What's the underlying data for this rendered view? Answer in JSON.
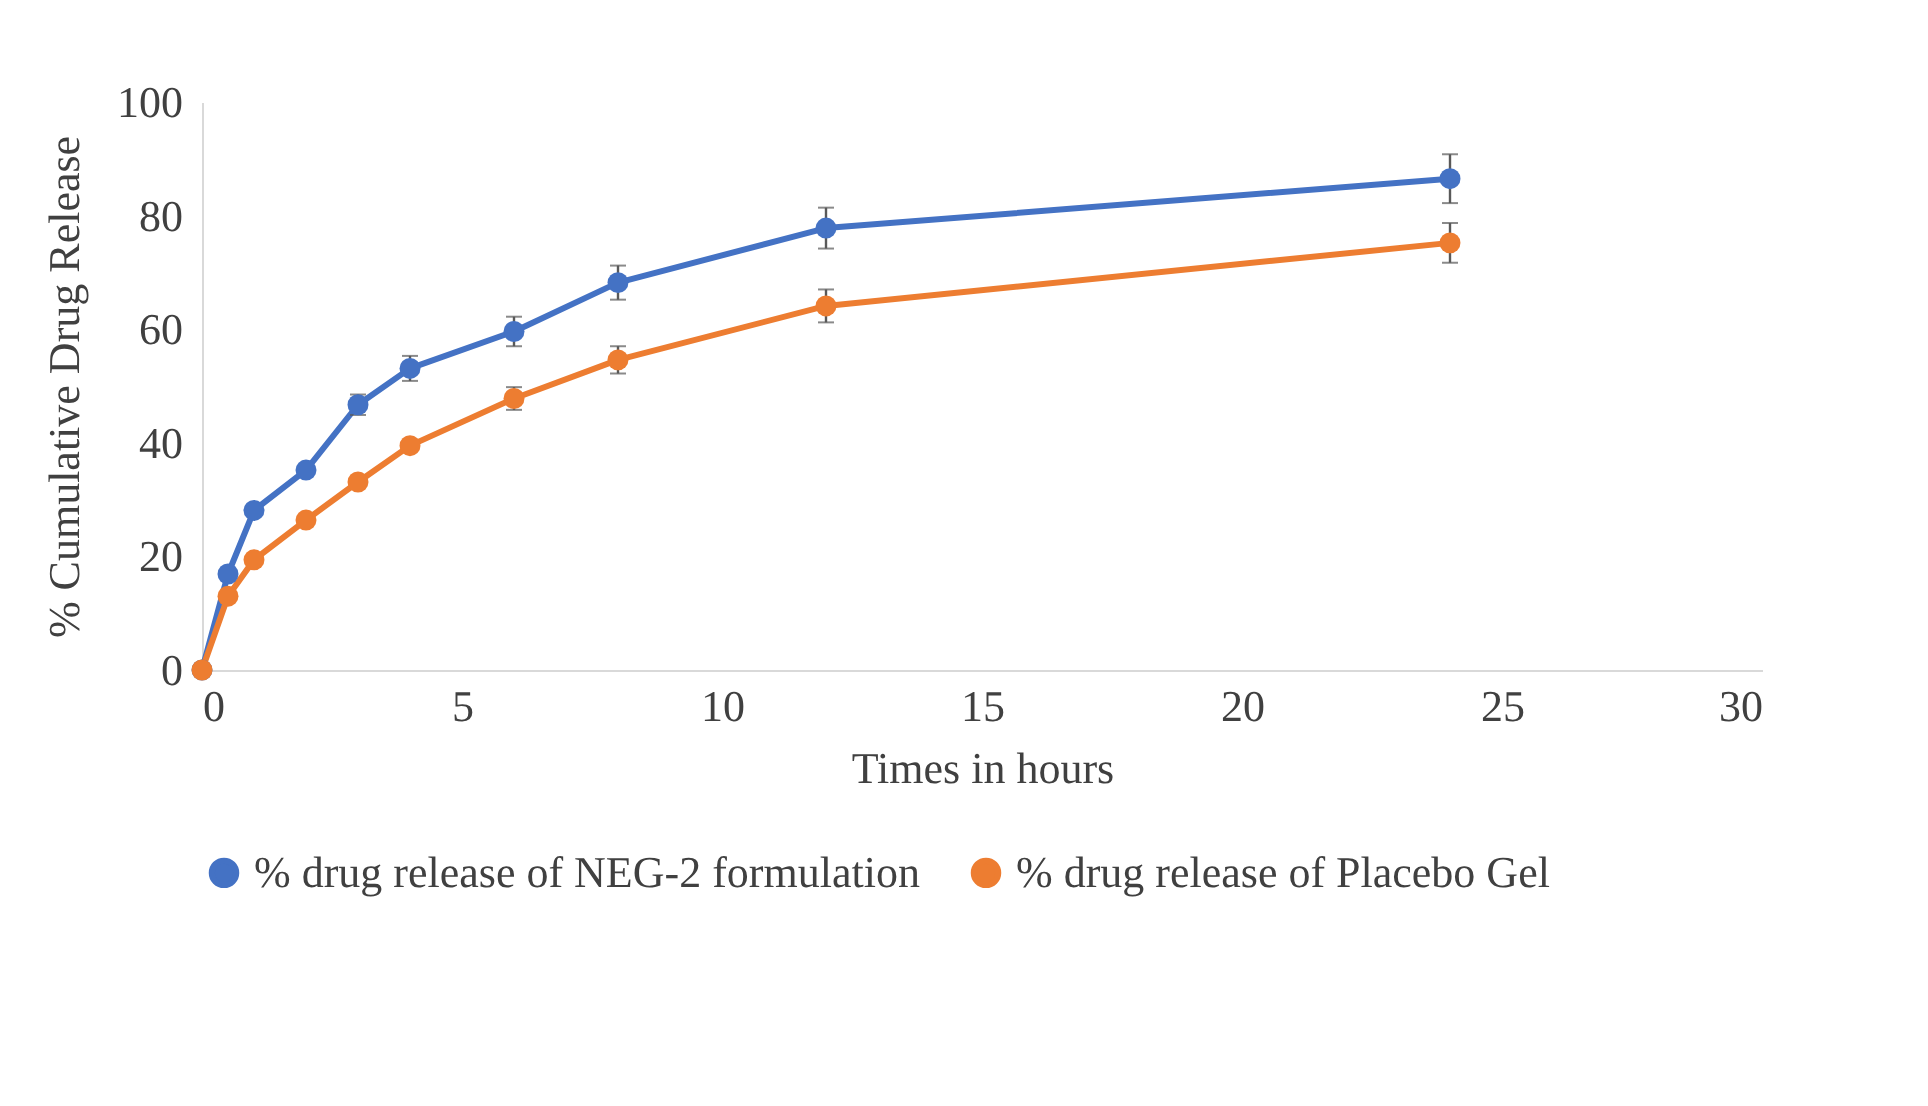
{
  "chart_data": {
    "type": "line",
    "xlabel": "Times in hours",
    "ylabel": "% Cumulative Drug Release",
    "x": [
      0,
      0.5,
      1,
      2,
      3,
      4,
      6,
      8,
      12,
      24
    ],
    "series": [
      {
        "name": "% drug release of NEG-2 formulation",
        "color": "#4472c4",
        "values": [
          0,
          16.9,
          28.1,
          35.2,
          46.7,
          53.1,
          59.6,
          68.2,
          77.8,
          86.5
        ],
        "errors": [
          null,
          null,
          null,
          null,
          1.8,
          2.2,
          2.6,
          3,
          3.6,
          4.3
        ]
      },
      {
        "name": "% drug release of Placebo Gel",
        "color": "#ed7d31",
        "values": [
          0,
          13,
          19.4,
          26.4,
          33.1,
          39.5,
          47.8,
          54.6,
          64.1,
          75.2
        ],
        "errors": [
          null,
          null,
          null,
          null,
          null,
          null,
          2,
          2.4,
          2.9,
          3.5
        ]
      }
    ],
    "xlim": [
      0,
      30
    ],
    "xticks": [
      0,
      5,
      10,
      15,
      20,
      25,
      30
    ],
    "ylim": [
      0,
      100
    ],
    "yticks": [
      0,
      20,
      40,
      60,
      80,
      100
    ],
    "grid": false,
    "legend": "bottom",
    "marker": "circle",
    "line_style": "solid"
  }
}
